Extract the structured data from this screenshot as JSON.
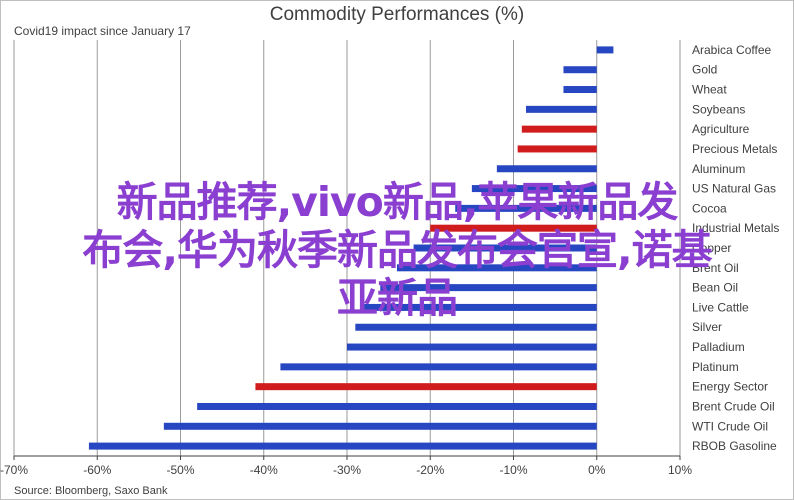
{
  "title": "Commodity Performances (%)",
  "subtitle": "Covid19 impact since January 17",
  "source": "Source: Bloomberg, Saxo Bank",
  "overlay_lines": [
    "新品推荐,vivo新品,苹果新品发",
    "布会,华为秋季新品发布会官宣,诺基",
    "亚新品"
  ],
  "colors": {
    "blue": "#2746c2",
    "red": "#d01c1c",
    "overlay": "#8a3fd0",
    "grid": "#9a9a9a"
  },
  "chart_data": {
    "type": "bar",
    "orientation": "horizontal",
    "xlim": [
      -70,
      10
    ],
    "xticks": [
      "-70%",
      "-60%",
      "-50%",
      "-40%",
      "-30%",
      "-20%",
      "-10%",
      "0%",
      "10%"
    ],
    "grid": true,
    "categories": [
      "Arabica Coffee",
      "Gold",
      "Wheat",
      "Soybeans",
      "Agriculture",
      "Precious Metals",
      "Aluminum",
      "US Natural Gas",
      "Cocoa",
      "Industrial Metals",
      "Copper",
      "Brent Oil",
      "Bean Oil",
      "Live Cattle",
      "Silver",
      "Palladium",
      "Platinum",
      "Energy Sector",
      "Brent Crude Oil",
      "WTI Crude Oil",
      "RBOB Gasoline"
    ],
    "values": [
      2,
      -4,
      -4,
      -8.5,
      -9,
      -9.5,
      -12,
      -15,
      -17,
      -20,
      -22,
      -24,
      -26,
      -28,
      -29,
      -30,
      -38,
      -41,
      -48,
      -52,
      -61
    ],
    "bar_colors": [
      "blue",
      "blue",
      "blue",
      "blue",
      "red",
      "red",
      "blue",
      "blue",
      "blue",
      "red",
      "blue",
      "blue",
      "blue",
      "blue",
      "blue",
      "blue",
      "blue",
      "red",
      "blue",
      "blue",
      "blue"
    ]
  }
}
